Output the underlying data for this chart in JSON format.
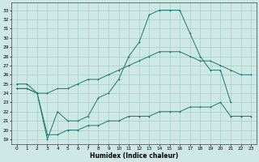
{
  "xlabel": "Humidex (Indice chaleur)",
  "bg_color": "#cde8e5",
  "grid_color": "#a8ceca",
  "line_color": "#1a7a6e",
  "xlim": [
    -0.5,
    23.5
  ],
  "ylim": [
    18.5,
    33.8
  ],
  "xticks": [
    0,
    1,
    2,
    3,
    4,
    5,
    6,
    7,
    8,
    9,
    10,
    11,
    12,
    13,
    14,
    15,
    16,
    17,
    18,
    19,
    20,
    21,
    22,
    23
  ],
  "yticks": [
    19,
    20,
    21,
    22,
    23,
    24,
    25,
    26,
    27,
    28,
    29,
    30,
    31,
    32,
    33
  ],
  "curve1_x": [
    0,
    1,
    2,
    3,
    4,
    5,
    6,
    7,
    8,
    9,
    10,
    11,
    12,
    13,
    14,
    15,
    16,
    17,
    18,
    19,
    20,
    21
  ],
  "curve1_y": [
    24.5,
    24.5,
    24.0,
    19.0,
    22.0,
    21.0,
    21.0,
    21.5,
    23.5,
    24.0,
    25.5,
    28.0,
    29.5,
    32.5,
    33.0,
    33.0,
    33.0,
    30.5,
    28.0,
    26.5,
    26.5,
    23.0
  ],
  "curve2_x": [
    0,
    1,
    2,
    3,
    4,
    5,
    6,
    7,
    8,
    9,
    10,
    11,
    12,
    13,
    14,
    15,
    16,
    17,
    18,
    19,
    20,
    21,
    22,
    23
  ],
  "curve2_y": [
    25.0,
    25.0,
    24.0,
    24.0,
    24.5,
    24.5,
    25.0,
    25.5,
    25.5,
    26.0,
    26.5,
    27.0,
    27.5,
    28.0,
    28.5,
    28.5,
    28.5,
    28.0,
    27.5,
    27.5,
    27.0,
    26.5,
    26.0,
    26.0
  ],
  "curve3_x": [
    0,
    1,
    2,
    3,
    4,
    5,
    6,
    7,
    8,
    9,
    10,
    11,
    12,
    13,
    14,
    15,
    16,
    17,
    18,
    19,
    20,
    21,
    22,
    23
  ],
  "curve3_y": [
    24.5,
    24.5,
    24.0,
    19.5,
    19.5,
    20.0,
    20.0,
    20.5,
    20.5,
    21.0,
    21.0,
    21.5,
    21.5,
    21.5,
    22.0,
    22.0,
    22.0,
    22.5,
    22.5,
    22.5,
    23.0,
    21.5,
    21.5,
    21.5
  ]
}
